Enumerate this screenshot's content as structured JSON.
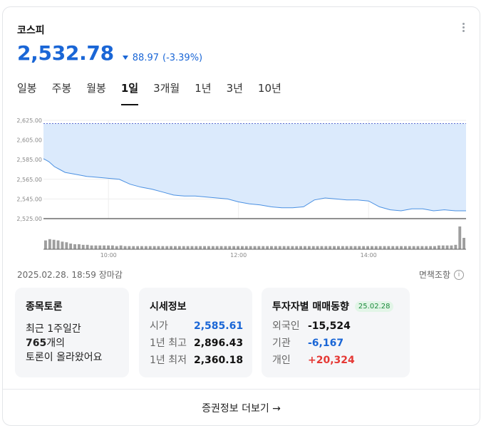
{
  "header": {
    "title": "코스피"
  },
  "quote": {
    "price": "2,532.78",
    "change": "88.97",
    "change_pct": "(-3.39%)",
    "direction": "down"
  },
  "tabs": [
    {
      "label": "일봉",
      "active": false
    },
    {
      "label": "주봉",
      "active": false
    },
    {
      "label": "월봉",
      "active": false
    },
    {
      "label": "1일",
      "active": true
    },
    {
      "label": "3개월",
      "active": false
    },
    {
      "label": "1년",
      "active": false
    },
    {
      "label": "3년",
      "active": false
    },
    {
      "label": "10년",
      "active": false
    }
  ],
  "chart_data": {
    "type": "area",
    "title": "",
    "xlabel": "",
    "ylabel": "",
    "y_ticks": [
      "2,625.00",
      "2,605.00",
      "2,585.00",
      "2,565.00",
      "2,545.00",
      "2,525.00"
    ],
    "ylim": [
      2525,
      2625
    ],
    "x_ticks": [
      "10:00",
      "12:00",
      "14:00"
    ],
    "x_tick_values": [
      60,
      180,
      300
    ],
    "xlim": [
      0,
      390
    ],
    "previous_close": 2621.75,
    "series": [
      {
        "x": [
          0,
          5,
          10,
          15,
          20,
          30,
          40,
          50,
          60,
          70,
          80,
          90,
          100,
          110,
          120,
          130,
          140,
          150,
          160,
          170,
          180,
          190,
          200,
          210,
          220,
          230,
          240,
          250,
          260,
          270,
          280,
          290,
          300,
          310,
          320,
          330,
          340,
          350,
          360,
          370,
          380,
          390
        ],
        "values": [
          2586,
          2583,
          2578,
          2575,
          2572,
          2570,
          2568,
          2567,
          2566,
          2565,
          2560,
          2557,
          2555,
          2552,
          2549,
          2548,
          2548,
          2547,
          2546,
          2545,
          2542,
          2540,
          2539,
          2537,
          2536,
          2536,
          2537,
          2544,
          2546,
          2545,
          2544,
          2544,
          2543,
          2537,
          2534,
          2533,
          2535,
          2535,
          2533,
          2534,
          2533,
          2533
        ]
      }
    ],
    "volume": [
      14,
      16,
      15,
      14,
      12,
      11,
      9,
      8,
      8,
      7,
      7,
      6,
      6,
      6,
      6,
      6,
      6,
      5,
      6,
      5,
      5,
      5,
      5,
      5,
      5,
      5,
      5,
      5,
      5,
      5,
      5,
      5,
      5,
      5,
      5,
      5,
      5,
      5,
      5,
      5,
      5,
      5,
      5,
      5,
      5,
      5,
      5,
      5,
      5,
      5,
      5,
      5,
      5,
      5,
      5,
      5,
      5,
      5,
      5,
      5,
      5,
      5,
      5,
      5,
      5,
      5,
      5,
      5,
      5,
      5,
      5,
      5,
      5,
      5,
      5,
      5,
      5,
      5,
      5,
      5,
      5,
      5,
      5,
      5,
      5,
      5,
      5,
      5,
      5,
      5,
      5,
      5,
      5,
      5,
      6,
      6,
      6,
      6,
      7,
      36,
      18
    ],
    "colors": {
      "line": "#4a90e2",
      "fill": "#dbeafc",
      "prev_close": "#5b6ed0",
      "volume": "#9e9e9e"
    }
  },
  "meta": {
    "asof": "2025.02.28. 18:59 장마감",
    "disclaimer": "면책조항",
    "info_icon_glyph": "i"
  },
  "discussion": {
    "title": "종목토론",
    "line1": "최근 1주일간",
    "count": "765",
    "count_suffix": "개의",
    "line3": "토론이 올라왔어요"
  },
  "market_info": {
    "title": "시세정보",
    "rows": [
      {
        "label": "시가",
        "value": "2,585.61"
      },
      {
        "label": "1년 최고",
        "value": "2,896.43"
      },
      {
        "label": "1년 최저",
        "value": "2,360.18"
      }
    ]
  },
  "investors": {
    "title": "투자자별 매매동향",
    "date": "25.02.28",
    "rows": [
      {
        "label": "외국인",
        "value": "-15,524"
      },
      {
        "label": "기관",
        "value": "-6,167"
      },
      {
        "label": "개인",
        "value": "+20,324"
      }
    ]
  },
  "footer": {
    "label": "증권정보 더보기",
    "arrow": "→"
  }
}
